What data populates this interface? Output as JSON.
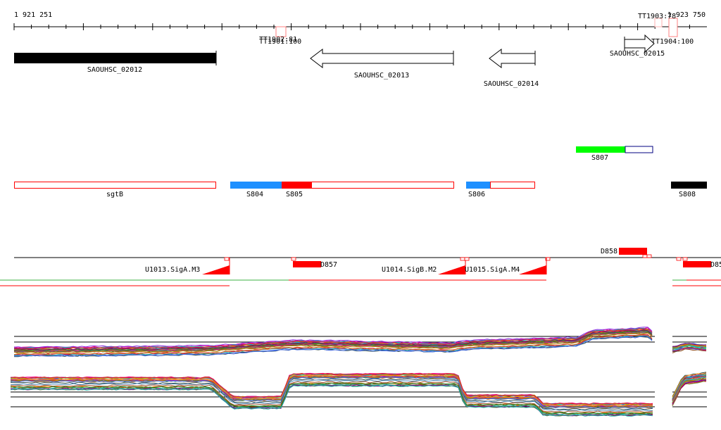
{
  "ruler": {
    "start_label": "1 921 251",
    "end_label": "1 923 750"
  },
  "terminators": [
    "TT1902:81",
    "TT1901:100",
    "TT1903:78",
    "TT1904:100"
  ],
  "genes": [
    "SAOUHSC_02012",
    "SAOUHSC_02013",
    "SAOUHSC_02014",
    "SAOUHSC_02015"
  ],
  "segments": [
    "S807",
    "sgtB",
    "S804",
    "S805",
    "S806",
    "S808"
  ],
  "sites": [
    "D858",
    "D857",
    "D85",
    "U1013.SigA.M3",
    "U1014.SigB.M2",
    "U1015.SigA.M4"
  ],
  "colors": {
    "red": "#ff0000",
    "blue": "#1e90ff",
    "green": "#00ff00",
    "black": "#000000"
  }
}
